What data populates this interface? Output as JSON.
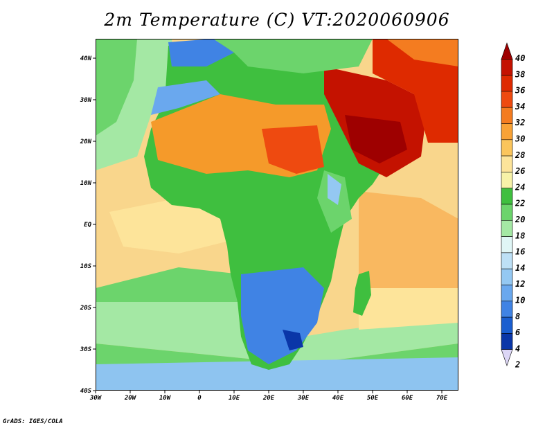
{
  "title": "2m Temperature (C) VT:2020060906",
  "credit": "GrADS: IGES/COLA",
  "map": {
    "lon_range": [
      -30,
      75
    ],
    "lat_range": [
      -40,
      45
    ],
    "lon_ticks": [
      "30W",
      "20W",
      "10W",
      "0",
      "10E",
      "20E",
      "30E",
      "40E",
      "50E",
      "60E",
      "70E"
    ],
    "lat_ticks": [
      "40N",
      "30N",
      "20N",
      "10N",
      "EQ",
      "10S",
      "20S",
      "30S",
      "40S"
    ]
  },
  "colorbar": {
    "labels": [
      "40",
      "38",
      "36",
      "34",
      "32",
      "30",
      "28",
      "26",
      "24",
      "22",
      "20",
      "18",
      "16",
      "14",
      "12",
      "10",
      "8",
      "6",
      "4",
      "2"
    ],
    "colors": [
      "#9e0000",
      "#c41200",
      "#de2a00",
      "#ee4a10",
      "#f47c20",
      "#f9a236",
      "#fbc55c",
      "#fde49a",
      "#f7f2a8",
      "#3fbf3f",
      "#6cd46c",
      "#a4e8a4",
      "#e0f6f6",
      "#bde0f6",
      "#94c8f2",
      "#6aa8ee",
      "#4083e4",
      "#1a5ed0",
      "#0a36a8",
      "#0a1470"
    ]
  },
  "colors": {
    "ocean_warm": "#f9d68c",
    "ocean_mid": "#fbe6a0",
    "ocean_cool": "#7fd47f",
    "ocean_cold": "#8ec4f0",
    "land_green": "#3fbf3f",
    "land_orange": "#f59a2a",
    "land_hot": "#d42200",
    "land_cool": "#5a9ae8"
  }
}
